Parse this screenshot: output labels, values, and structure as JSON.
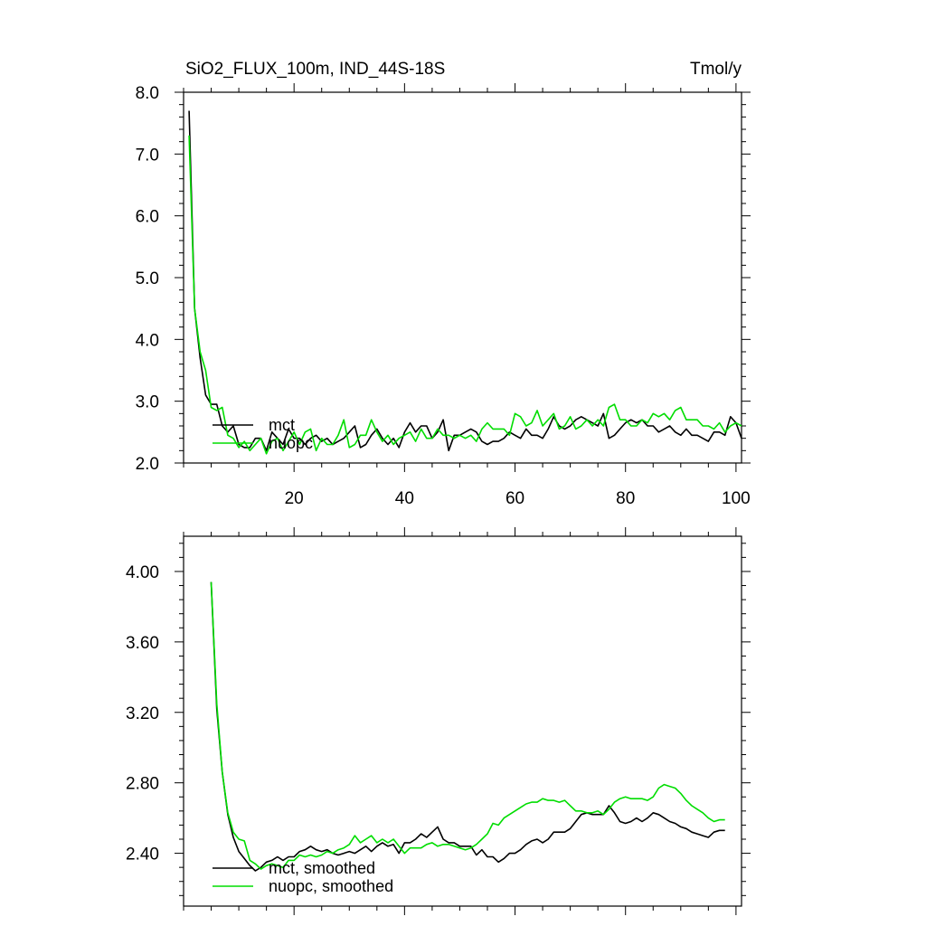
{
  "figure": {
    "title_left": "SiO2_FLUX_100m, IND_44S-18S",
    "title_right": "Tmol/y"
  },
  "colors": {
    "mct": "#000000",
    "nuopc": "#00dd00",
    "axis": "#000000",
    "background": "#ffffff"
  },
  "chart_data": [
    {
      "type": "line",
      "title": "SiO2_FLUX_100m, IND_44S-18S",
      "units": "Tmol/y",
      "xlim": [
        0,
        101
      ],
      "ylim": [
        2.0,
        8.0
      ],
      "xticks": [
        20,
        40,
        60,
        80,
        100
      ],
      "xtick_labels": [
        "20",
        "40",
        "60",
        "80",
        "100"
      ],
      "yticks": [
        2.0,
        3.0,
        4.0,
        5.0,
        6.0,
        7.0,
        8.0
      ],
      "ytick_labels": [
        "2.0",
        "3.0",
        "4.0",
        "5.0",
        "6.0",
        "7.0",
        "8.0"
      ],
      "grid": false,
      "legend_position": "bottom-left",
      "x_start": 1,
      "series": [
        {
          "name": "mct",
          "color": "#000000",
          "values": [
            7.7,
            4.5,
            3.7,
            3.1,
            2.95,
            2.95,
            2.6,
            2.5,
            2.6,
            2.3,
            2.25,
            2.25,
            2.4,
            2.4,
            2.2,
            2.5,
            2.4,
            2.3,
            2.55,
            2.4,
            2.4,
            2.3,
            2.4,
            2.45,
            2.35,
            2.4,
            2.3,
            2.35,
            2.4,
            2.5,
            2.6,
            2.25,
            2.3,
            2.45,
            2.55,
            2.4,
            2.3,
            2.4,
            2.25,
            2.5,
            2.65,
            2.5,
            2.6,
            2.6,
            2.4,
            2.5,
            2.7,
            2.2,
            2.45,
            2.45,
            2.5,
            2.55,
            2.5,
            2.35,
            2.3,
            2.35,
            2.35,
            2.4,
            2.5,
            2.45,
            2.4,
            2.55,
            2.45,
            2.45,
            2.4,
            2.55,
            2.75,
            2.6,
            2.55,
            2.6,
            2.7,
            2.75,
            2.7,
            2.65,
            2.6,
            2.8,
            2.4,
            2.45,
            2.55,
            2.65,
            2.7,
            2.65,
            2.7,
            2.6,
            2.6,
            2.5,
            2.55,
            2.6,
            2.5,
            2.45,
            2.55,
            2.45,
            2.45,
            2.4,
            2.35,
            2.5,
            2.5,
            2.45,
            2.75,
            2.65,
            2.4
          ]
        },
        {
          "name": "nuopc",
          "color": "#00dd00",
          "values": [
            7.3,
            4.5,
            3.8,
            3.5,
            2.9,
            2.85,
            2.9,
            2.45,
            2.4,
            2.25,
            2.35,
            2.2,
            2.3,
            2.4,
            2.15,
            2.35,
            2.4,
            2.2,
            2.35,
            2.5,
            2.3,
            2.5,
            2.55,
            2.2,
            2.4,
            2.3,
            2.3,
            2.45,
            2.7,
            2.25,
            2.3,
            2.45,
            2.45,
            2.7,
            2.5,
            2.35,
            2.45,
            2.3,
            2.4,
            2.45,
            2.5,
            2.35,
            2.55,
            2.4,
            2.4,
            2.55,
            2.45,
            2.45,
            2.4,
            2.45,
            2.4,
            2.45,
            2.35,
            2.55,
            2.65,
            2.55,
            2.55,
            2.55,
            2.45,
            2.8,
            2.75,
            2.6,
            2.65,
            2.85,
            2.6,
            2.7,
            2.8,
            2.55,
            2.6,
            2.75,
            2.55,
            2.6,
            2.7,
            2.6,
            2.7,
            2.6,
            2.9,
            2.95,
            2.7,
            2.7,
            2.6,
            2.6,
            2.7,
            2.65,
            2.8,
            2.75,
            2.8,
            2.7,
            2.85,
            2.9,
            2.7,
            2.7,
            2.7,
            2.6,
            2.6,
            2.55,
            2.65,
            2.5,
            2.6,
            2.65,
            2.6
          ]
        }
      ],
      "legend": [
        "mct",
        "nuopc"
      ]
    },
    {
      "type": "line",
      "xlim": [
        0,
        101
      ],
      "ylim": [
        2.1,
        4.2
      ],
      "xticks": [
        20,
        40,
        60,
        80,
        100
      ],
      "xtick_labels": [],
      "yticks": [
        2.4,
        2.8,
        3.2,
        3.6,
        4.0
      ],
      "ytick_labels": [
        "2.40",
        "2.80",
        "3.20",
        "3.60",
        "4.00"
      ],
      "grid": false,
      "legend_position": "bottom-left",
      "x_start": 5,
      "series": [
        {
          "name": "mct, smoothed",
          "color": "#000000",
          "values": [
            3.94,
            3.22,
            2.86,
            2.62,
            2.49,
            2.41,
            2.37,
            2.33,
            2.3,
            2.32,
            2.35,
            2.36,
            2.38,
            2.36,
            2.38,
            2.38,
            2.41,
            2.42,
            2.44,
            2.42,
            2.41,
            2.42,
            2.4,
            2.39,
            2.4,
            2.41,
            2.4,
            2.42,
            2.44,
            2.41,
            2.44,
            2.46,
            2.44,
            2.45,
            2.4,
            2.46,
            2.46,
            2.48,
            2.51,
            2.49,
            2.52,
            2.55,
            2.48,
            2.46,
            2.46,
            2.44,
            2.44,
            2.44,
            2.39,
            2.42,
            2.38,
            2.38,
            2.35,
            2.37,
            2.4,
            2.4,
            2.42,
            2.45,
            2.47,
            2.48,
            2.46,
            2.48,
            2.52,
            2.52,
            2.52,
            2.54,
            2.58,
            2.62,
            2.63,
            2.62,
            2.62,
            2.62,
            2.67,
            2.63,
            2.58,
            2.57,
            2.58,
            2.6,
            2.58,
            2.6,
            2.63,
            2.62,
            2.6,
            2.58,
            2.57,
            2.55,
            2.54,
            2.52,
            2.51,
            2.5,
            2.49,
            2.52,
            2.53,
            2.53
          ]
        },
        {
          "name": "nuopc, smoothed",
          "color": "#00dd00",
          "values": [
            3.94,
            3.25,
            2.86,
            2.63,
            2.52,
            2.48,
            2.47,
            2.36,
            2.34,
            2.31,
            2.33,
            2.34,
            2.33,
            2.32,
            2.36,
            2.36,
            2.39,
            2.38,
            2.39,
            2.38,
            2.39,
            2.41,
            2.4,
            2.42,
            2.43,
            2.45,
            2.5,
            2.46,
            2.48,
            2.5,
            2.46,
            2.48,
            2.46,
            2.48,
            2.44,
            2.4,
            2.43,
            2.43,
            2.43,
            2.45,
            2.46,
            2.44,
            2.45,
            2.45,
            2.44,
            2.43,
            2.42,
            2.43,
            2.45,
            2.48,
            2.51,
            2.57,
            2.56,
            2.6,
            2.62,
            2.64,
            2.66,
            2.68,
            2.69,
            2.69,
            2.71,
            2.7,
            2.7,
            2.69,
            2.7,
            2.67,
            2.64,
            2.64,
            2.63,
            2.63,
            2.64,
            2.62,
            2.65,
            2.69,
            2.71,
            2.72,
            2.71,
            2.71,
            2.71,
            2.7,
            2.72,
            2.77,
            2.79,
            2.78,
            2.77,
            2.74,
            2.7,
            2.67,
            2.65,
            2.63,
            2.6,
            2.58,
            2.59,
            2.59
          ]
        }
      ],
      "legend": [
        "mct, smoothed",
        "nuopc, smoothed"
      ]
    }
  ]
}
